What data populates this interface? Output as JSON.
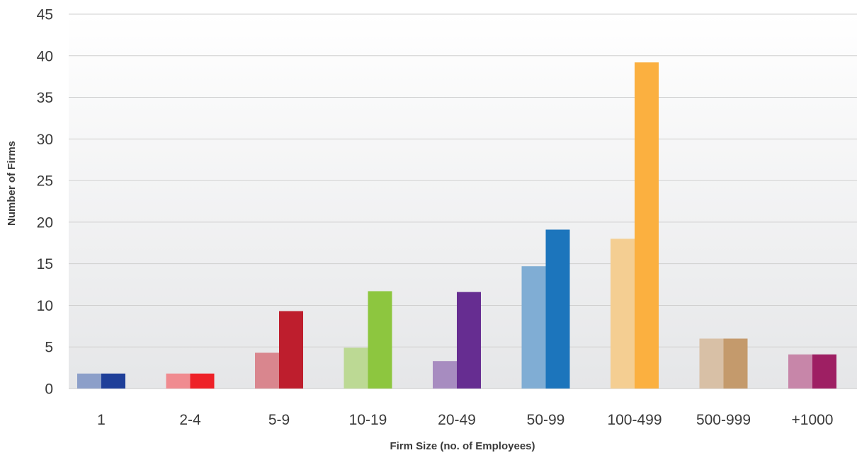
{
  "chart_data": {
    "type": "bar",
    "title": "",
    "xlabel": "Firm Size (no. of Employees)",
    "ylabel": "Number of Firms",
    "ylim": [
      0,
      45
    ],
    "yticks": [
      0,
      5,
      10,
      15,
      20,
      25,
      30,
      35,
      40,
      45
    ],
    "grid": true,
    "legend": "none",
    "categories": [
      "1",
      "2-4",
      "5-9",
      "10-19",
      "20-49",
      "50-99",
      "100-499",
      "500-999",
      "+1000"
    ],
    "series": [
      {
        "values": [
          1.8,
          1.8,
          4.3,
          4.9,
          3.3,
          14.7,
          18.0,
          6.0,
          4.1
        ]
      },
      {
        "values": [
          1.8,
          1.8,
          9.3,
          11.7,
          11.6,
          19.1,
          39.2,
          6.0,
          4.1
        ]
      }
    ],
    "colors": {
      "series_0": [
        "#8c9fc9",
        "#f08b90",
        "#d9868e",
        "#bcd994",
        "#a78cc0",
        "#80add4",
        "#f4ce92",
        "#d8c0a6",
        "#c786a9"
      ],
      "series_1": [
        "#1f3f99",
        "#ee2128",
        "#be1e2d",
        "#8dc63f",
        "#662d91",
        "#1c75bc",
        "#fbb040",
        "#c49a6c",
        "#9e1f63"
      ],
      "grid": "#cfcfcf",
      "baseline": "#c8c8c8"
    }
  }
}
